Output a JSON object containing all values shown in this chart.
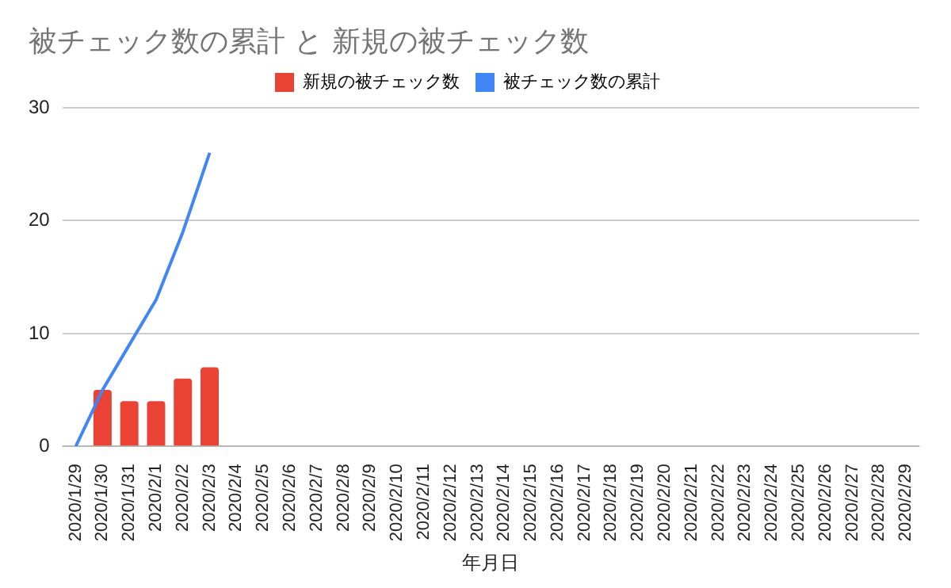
{
  "chart_data": {
    "type": "bar",
    "title": "被チェック数の累計 と 新規の被チェック数",
    "xlabel": "年月日",
    "categories": [
      "2020/1/29",
      "2020/1/30",
      "2020/1/31",
      "2020/2/1",
      "2020/2/2",
      "2020/2/3",
      "2020/2/4",
      "2020/2/5",
      "2020/2/6",
      "2020/2/7",
      "2020/2/8",
      "2020/2/9",
      "2020/2/10",
      "2020/2/11",
      "2020/2/12",
      "2020/2/13",
      "2020/2/14",
      "2020/2/15",
      "2020/2/16",
      "2020/2/17",
      "2020/2/18",
      "2020/2/19",
      "2020/2/20",
      "2020/2/21",
      "2020/2/22",
      "2020/2/23",
      "2020/2/24",
      "2020/2/25",
      "2020/2/26",
      "2020/2/27",
      "2020/2/28",
      "2020/2/29"
    ],
    "series": [
      {
        "name": "新規の被チェック数",
        "color": "#ea4335",
        "values": [
          null,
          5,
          4,
          4,
          6,
          7,
          null,
          null,
          null,
          null,
          null,
          null,
          null,
          null,
          null,
          null,
          null,
          null,
          null,
          null,
          null,
          null,
          null,
          null,
          null,
          null,
          null,
          null,
          null,
          null,
          null,
          null
        ]
      },
      {
        "name": "被チェック数の累計",
        "type": "line",
        "color": "#4285f4",
        "values": [
          0,
          5,
          9,
          13,
          19,
          26,
          null,
          null,
          null,
          null,
          null,
          null,
          null,
          null,
          null,
          null,
          null,
          null,
          null,
          null,
          null,
          null,
          null,
          null,
          null,
          null,
          null,
          null,
          null,
          null,
          null,
          null
        ]
      }
    ],
    "ylim": [
      0,
      30
    ],
    "yticks": [
      0,
      10,
      20,
      30
    ],
    "grid": "y",
    "legend": "top",
    "marker": "none"
  }
}
